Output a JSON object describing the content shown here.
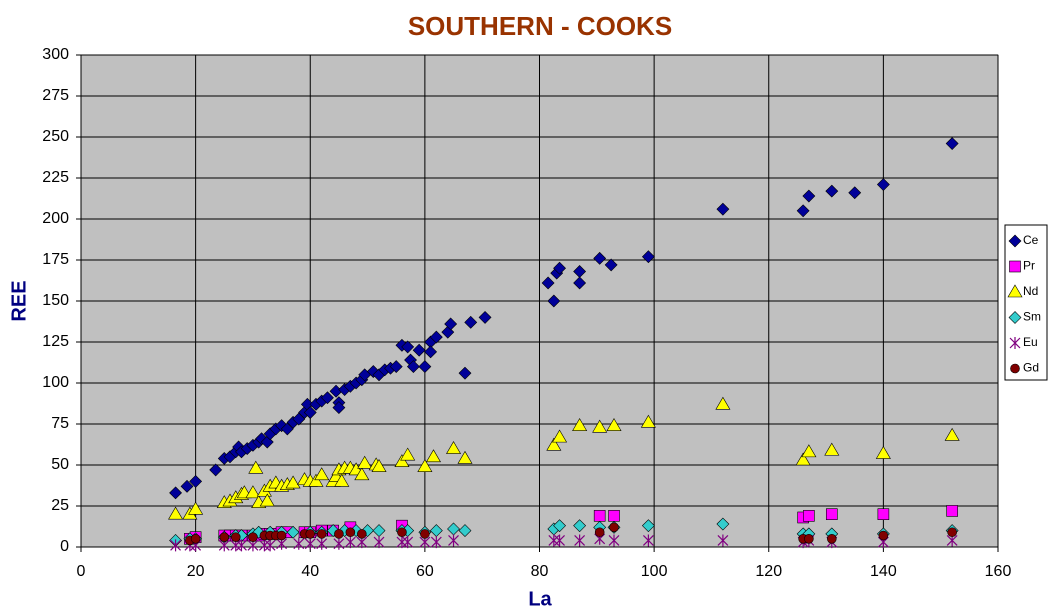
{
  "chart_data": {
    "type": "scatter",
    "title": "SOUTHERN - COOKS",
    "x_label": "La",
    "y_label": "REE",
    "xlim": [
      0,
      160
    ],
    "xticks": [
      0,
      20,
      40,
      60,
      80,
      100,
      120,
      140,
      160
    ],
    "ylim": [
      0,
      300
    ],
    "yticks": [
      0,
      25,
      50,
      75,
      100,
      125,
      150,
      175,
      200,
      225,
      250,
      275,
      300
    ],
    "grid": true,
    "legend": "right",
    "series": [
      {
        "name": "Ce",
        "color": "#000099",
        "marker": "diamond",
        "x": [
          16.5,
          18.5,
          20,
          23.5,
          25,
          26,
          27,
          27.5,
          28,
          29,
          30,
          31,
          31.5,
          32.5,
          33,
          34,
          35,
          36,
          37,
          38,
          39,
          39.5,
          40,
          41,
          42,
          43,
          44.5,
          45,
          45,
          46,
          47,
          48,
          49,
          49.5,
          51,
          52,
          53,
          54,
          55,
          56,
          57,
          57.5,
          58,
          59,
          60,
          61,
          61,
          62,
          64,
          64.5,
          67,
          68,
          70.5,
          81.5,
          82.5,
          83,
          83.5,
          87,
          87,
          90.5,
          92.5,
          99,
          112,
          126,
          127,
          131,
          135,
          140,
          152
        ],
        "values": [
          33,
          37,
          40,
          47,
          54,
          55,
          58,
          61,
          58,
          60,
          62,
          64,
          66,
          64,
          69,
          72,
          74,
          72,
          76,
          78,
          82,
          87,
          82,
          87,
          89,
          91,
          95,
          88,
          85,
          96,
          98,
          100,
          102,
          105,
          107,
          105,
          108,
          109,
          110,
          123,
          122,
          114,
          110,
          120,
          110,
          125,
          119,
          128,
          131,
          136,
          106,
          137,
          140,
          161,
          150,
          167,
          170,
          168,
          161,
          176,
          172,
          177,
          206,
          205,
          214,
          217,
          216,
          221,
          246
        ]
      },
      {
        "name": "Pr",
        "color": "#FF00FF",
        "marker": "square",
        "x": [
          19,
          20,
          25,
          26,
          27,
          28,
          30,
          31,
          32,
          33,
          34,
          35,
          36,
          39,
          40,
          42,
          44,
          47,
          56,
          90.5,
          93,
          126,
          127,
          131,
          140,
          152
        ],
        "values": [
          5,
          6,
          7,
          7,
          7,
          7,
          7,
          7,
          8,
          8,
          8,
          9,
          9,
          9,
          9,
          10,
          10,
          12,
          13,
          19,
          19,
          18,
          19,
          20,
          20,
          22
        ]
      },
      {
        "name": "Nd",
        "color": "#FFFF00",
        "marker": "triangle",
        "x": [
          16.5,
          19,
          20,
          25,
          26,
          27,
          28,
          28.5,
          30.5,
          30,
          31,
          32,
          32.5,
          33,
          34,
          35,
          36,
          37,
          39,
          40,
          41,
          42,
          44,
          44.5,
          45,
          45.5,
          46,
          47,
          48,
          49,
          49.5,
          51.5,
          52,
          56,
          57,
          60,
          61.5,
          65,
          67,
          82.5,
          83.5,
          87,
          90.5,
          93,
          99,
          112,
          126,
          127,
          131,
          140,
          152
        ],
        "values": [
          20,
          20,
          23,
          27,
          28,
          30,
          32,
          33,
          48,
          33,
          27,
          34,
          28,
          37,
          39,
          37,
          38,
          39,
          41,
          40,
          40,
          44,
          40,
          43,
          47,
          40,
          48,
          48,
          47,
          44,
          51,
          50,
          49,
          52,
          56,
          49,
          55,
          60,
          54,
          62,
          67,
          74,
          73,
          74,
          76,
          87,
          53,
          58,
          59,
          57,
          68
        ]
      },
      {
        "name": "Sm",
        "color": "#33CCCC",
        "marker": "diamond",
        "x": [
          16.5,
          19,
          20,
          25,
          27,
          28,
          30,
          31,
          33,
          35,
          37,
          40,
          42,
          44,
          46,
          48,
          50,
          52,
          56,
          57,
          60,
          62,
          65,
          67,
          82.5,
          83.5,
          87,
          90.5,
          93,
          99,
          112,
          126,
          127,
          131,
          140,
          152
        ],
        "values": [
          4,
          5,
          5,
          6,
          7,
          7,
          8,
          9,
          9,
          9,
          9,
          9,
          9,
          10,
          10,
          10,
          10,
          10,
          10,
          10,
          9,
          10,
          11,
          10,
          11,
          13,
          13,
          12,
          12,
          13,
          14,
          8,
          8,
          8,
          8,
          10
        ]
      },
      {
        "name": "Eu",
        "color": "#800080",
        "marker": "star",
        "x": [
          16.5,
          19,
          20,
          25,
          27,
          28,
          30,
          32,
          33,
          35,
          38,
          40,
          42,
          45,
          47,
          49,
          52,
          56,
          57,
          60,
          62,
          65,
          82.5,
          83.5,
          87,
          90.5,
          93,
          99,
          112,
          126,
          127,
          131,
          140,
          152
        ],
        "values": [
          1,
          1,
          1,
          1,
          1,
          1,
          1,
          1,
          1,
          2,
          2,
          2,
          2,
          2,
          3,
          3,
          3,
          3,
          3,
          3,
          3,
          4,
          4,
          4,
          4,
          5,
          4,
          4,
          4,
          3,
          4,
          3,
          3,
          4
        ]
      },
      {
        "name": "Gd",
        "color": "#800000",
        "marker": "circle",
        "x": [
          19,
          20,
          25,
          27,
          30,
          32,
          33,
          34,
          35,
          39,
          40,
          42,
          45,
          47,
          49,
          56,
          60,
          90.5,
          93,
          126,
          127,
          131,
          140,
          152
        ],
        "values": [
          4,
          5,
          6,
          6,
          6,
          7,
          7,
          7,
          7,
          8,
          8,
          8,
          8,
          9,
          8,
          9,
          8,
          9,
          12,
          5,
          5,
          5,
          7,
          9
        ]
      }
    ]
  }
}
